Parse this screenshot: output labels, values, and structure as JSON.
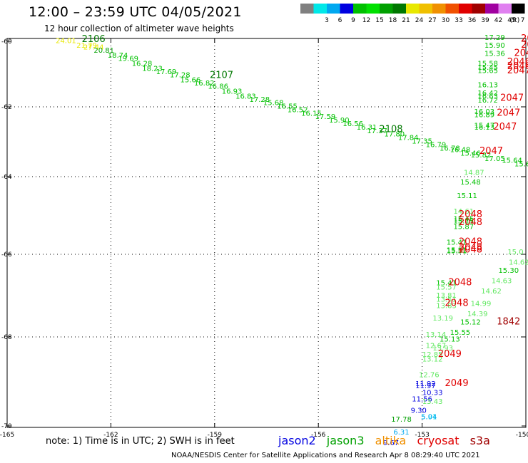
{
  "header": {
    "title": "12:00 – 23:59 UTC 04/05/2021",
    "subtitle": "12 hour collection of altimeter wave heights"
  },
  "scale": {
    "units_label": "(ft)",
    "bins": [
      {
        "label": "",
        "color": "#808080"
      },
      {
        "label": "3",
        "color": "#00e8e8"
      },
      {
        "label": "6",
        "color": "#00a8f0"
      },
      {
        "label": "9",
        "color": "#0000e0"
      },
      {
        "label": "12",
        "color": "#00c000"
      },
      {
        "label": "15",
        "color": "#00e000"
      },
      {
        "label": "18",
        "color": "#00a000"
      },
      {
        "label": "21",
        "color": "#007800"
      },
      {
        "label": "24",
        "color": "#e8e800"
      },
      {
        "label": "27",
        "color": "#f0c000"
      },
      {
        "label": "30",
        "color": "#f09000"
      },
      {
        "label": "33",
        "color": "#f05000"
      },
      {
        "label": "36",
        "color": "#e00000"
      },
      {
        "label": "39",
        "color": "#a00000"
      },
      {
        "label": "42",
        "color": "#a000a0"
      },
      {
        "label": "45",
        "color": "#e080f0"
      },
      {
        "label": "70",
        "color": "#000000"
      }
    ]
  },
  "axes": {
    "x_ticks": [
      "-165",
      "-162",
      "-159",
      "-156",
      "-153",
      "-150"
    ],
    "y_ticks": [
      "-60",
      "-62",
      "-64",
      "-66",
      "-68",
      "-70"
    ]
  },
  "chart_data": {
    "type": "map",
    "grid": "dotted",
    "tracks": [
      {
        "satellite": "jason3",
        "points": [
          {
            "lon": -163.3,
            "lat": -60.05,
            "swh": "24.01",
            "color": "#e8e800"
          },
          {
            "lon": -162.7,
            "lat": -60.2,
            "swh": "21.79",
            "color": "#e8e800"
          },
          {
            "lon": -162.5,
            "lat": -60.25,
            "swh": "27.44",
            "color": "#e8e800"
          },
          {
            "lon": -162.2,
            "lat": -60.35,
            "swh": "20.81",
            "color": "#00a000"
          },
          {
            "lon": -161.8,
            "lat": -60.5,
            "swh": "18.74",
            "color": "#00c000"
          },
          {
            "lon": -161.5,
            "lat": -60.6,
            "swh": "19.69",
            "color": "#00c000"
          },
          {
            "lon": -161.1,
            "lat": -60.75,
            "swh": "16.28",
            "color": "#00c000"
          },
          {
            "lon": -160.8,
            "lat": -60.9,
            "swh": "18.23",
            "color": "#00c000"
          },
          {
            "lon": -160.4,
            "lat": -61.0,
            "swh": "17.69",
            "color": "#00c000"
          },
          {
            "lon": -160.0,
            "lat": -61.1,
            "swh": "17.28",
            "color": "#00c000"
          },
          {
            "lon": -159.7,
            "lat": -61.25,
            "swh": "15.66",
            "color": "#00c000"
          },
          {
            "lon": -159.3,
            "lat": -61.35,
            "swh": "16.82",
            "color": "#00c000"
          },
          {
            "lon": -158.9,
            "lat": -61.45,
            "swh": "16.86",
            "color": "#00c000"
          },
          {
            "lon": -158.5,
            "lat": -61.6,
            "swh": "16.93",
            "color": "#00c000"
          },
          {
            "lon": -158.1,
            "lat": -61.75,
            "swh": "16.83",
            "color": "#00c000"
          },
          {
            "lon": -157.7,
            "lat": -61.85,
            "swh": "17.28",
            "color": "#00c000"
          },
          {
            "lon": -157.3,
            "lat": -61.95,
            "swh": "15.68",
            "color": "#00c000"
          },
          {
            "lon": -156.9,
            "lat": -62.05,
            "swh": "16.55",
            "color": "#00c000"
          },
          {
            "lon": -156.6,
            "lat": -62.15,
            "swh": "16.52",
            "color": "#00c000"
          },
          {
            "lon": -156.2,
            "lat": -62.25,
            "swh": "16.15",
            "color": "#00c000"
          },
          {
            "lon": -155.8,
            "lat": -62.35,
            "swh": "17.59",
            "color": "#00c000"
          },
          {
            "lon": -155.4,
            "lat": -62.45,
            "swh": "15.90",
            "color": "#00c000"
          },
          {
            "lon": -155.0,
            "lat": -62.55,
            "swh": "16.56",
            "color": "#00c000"
          },
          {
            "lon": -154.6,
            "lat": -62.65,
            "swh": "16.31",
            "color": "#00c000"
          },
          {
            "lon": -154.3,
            "lat": -62.75,
            "swh": "17.37",
            "color": "#00c000"
          },
          {
            "lon": -153.8,
            "lat": -62.85,
            "swh": "17.80",
            "color": "#00c000"
          },
          {
            "lon": -153.4,
            "lat": -62.95,
            "swh": "17.84",
            "color": "#00c000"
          },
          {
            "lon": -153.0,
            "lat": -63.05,
            "swh": "17.35",
            "color": "#00c000"
          },
          {
            "lon": -152.6,
            "lat": -63.15,
            "swh": "16.79",
            "color": "#00c000"
          },
          {
            "lon": -152.2,
            "lat": -63.25,
            "swh": "16.78",
            "color": "#00c000"
          },
          {
            "lon": -151.9,
            "lat": -63.3,
            "swh": "16.48",
            "color": "#00c000"
          },
          {
            "lon": -151.6,
            "lat": -63.4,
            "swh": "15.46",
            "color": "#00c000"
          },
          {
            "lon": -151.3,
            "lat": -63.45,
            "swh": "15.82",
            "color": "#00c000"
          },
          {
            "lon": -150.9,
            "lat": -63.55,
            "swh": "17.05",
            "color": "#00c000"
          },
          {
            "lon": -150.4,
            "lat": -63.6,
            "swh": "15.64",
            "color": "#00c000"
          },
          {
            "lon": -150.1,
            "lat": -63.7,
            "swh": "15.6",
            "color": "#00c000"
          }
        ]
      },
      {
        "satellite": "jason3",
        "points": [
          {
            "lon": -150.9,
            "lat": -59.95,
            "swh": "17.29",
            "color": "#00c000"
          },
          {
            "lon": -150.9,
            "lat": -60.2,
            "swh": "15.90",
            "color": "#00c000"
          },
          {
            "lon": -150.9,
            "lat": -60.45,
            "swh": "15.36",
            "color": "#00c000"
          },
          {
            "lon": -151.1,
            "lat": -60.75,
            "swh": "15.58",
            "color": "#00c000"
          },
          {
            "lon": -151.1,
            "lat": -60.87,
            "swh": "15.45",
            "color": "#00c000"
          },
          {
            "lon": -151.1,
            "lat": -60.97,
            "swh": "15.65",
            "color": "#00c000"
          },
          {
            "lon": -151.1,
            "lat": -61.4,
            "swh": "16.13",
            "color": "#00c000"
          },
          {
            "lon": -151.1,
            "lat": -61.65,
            "swh": "16.42",
            "color": "#00c000"
          },
          {
            "lon": -151.1,
            "lat": -61.75,
            "swh": "16.63",
            "color": "#00c000"
          },
          {
            "lon": -151.1,
            "lat": -61.87,
            "swh": "16.72",
            "color": "#00c000"
          },
          {
            "lon": -151.2,
            "lat": -62.2,
            "swh": "16.03",
            "color": "#00c000"
          },
          {
            "lon": -151.2,
            "lat": -62.3,
            "swh": "16.89",
            "color": "#00c000"
          },
          {
            "lon": -151.2,
            "lat": -62.6,
            "swh": "15.47",
            "color": "#00c000"
          },
          {
            "lon": -151.2,
            "lat": -62.65,
            "swh": "16.13",
            "color": "#00c000"
          }
        ]
      },
      {
        "satellite": "jason3",
        "points": [
          {
            "lon": -151.5,
            "lat": -63.95,
            "swh": "14.87",
            "color": "#60e860"
          },
          {
            "lon": -151.6,
            "lat": -64.2,
            "swh": "15.48",
            "color": "#00c000"
          },
          {
            "lon": -151.7,
            "lat": -64.55,
            "swh": "15.11",
            "color": "#00c000"
          },
          {
            "lon": -151.8,
            "lat": -64.95,
            "swh": "14.61",
            "color": "#60e860"
          },
          {
            "lon": -151.8,
            "lat": -65.15,
            "swh": "15.45",
            "color": "#00c000"
          },
          {
            "lon": -151.8,
            "lat": -65.2,
            "swh": "15.15",
            "color": "#00c000"
          },
          {
            "lon": -151.8,
            "lat": -65.35,
            "swh": "15.87",
            "color": "#00c000"
          },
          {
            "lon": -152.0,
            "lat": -65.75,
            "swh": "15.41",
            "color": "#00c000"
          },
          {
            "lon": -152.0,
            "lat": -65.95,
            "swh": "15.31",
            "color": "#00c000"
          },
          {
            "lon": -152.0,
            "lat": -65.97,
            "swh": "15.51",
            "color": "#00c000"
          },
          {
            "lon": -152.3,
            "lat": -66.75,
            "swh": "15.41",
            "color": "#00c000"
          },
          {
            "lon": -152.3,
            "lat": -66.85,
            "swh": "15.57",
            "color": "#60e860"
          },
          {
            "lon": -152.3,
            "lat": -67.05,
            "swh": "13.81",
            "color": "#60e860"
          },
          {
            "lon": -152.3,
            "lat": -67.15,
            "swh": "13.51",
            "color": "#60e860"
          },
          {
            "lon": -152.3,
            "lat": -67.3,
            "swh": "13.83",
            "color": "#60e860"
          },
          {
            "lon": -152.4,
            "lat": -67.6,
            "swh": "13.19",
            "color": "#60e860"
          },
          {
            "lon": -152.6,
            "lat": -68.0,
            "swh": "13.14",
            "color": "#60e860"
          },
          {
            "lon": -152.6,
            "lat": -68.25,
            "swh": "12.67",
            "color": "#60e860"
          },
          {
            "lon": -152.7,
            "lat": -68.45,
            "swh": "12.85",
            "color": "#60e860"
          },
          {
            "lon": -152.7,
            "lat": -68.55,
            "swh": "13.12",
            "color": "#60e860"
          },
          {
            "lon": -152.8,
            "lat": -68.9,
            "swh": "12.76",
            "color": "#60e860"
          },
          {
            "lon": -153.0,
            "lat": -69.45,
            "swh": "11.56",
            "color": "#0000e0"
          },
          {
            "lon": -153.1,
            "lat": -69.7,
            "swh": "9.30",
            "color": "#0000e0"
          },
          {
            "lon": -153.6,
            "lat": -69.9,
            "swh": "17.78",
            "color": "#00a000"
          },
          {
            "lon": -153.6,
            "lat": -70.2,
            "swh": "6.31",
            "color": "#00a8f0"
          },
          {
            "lon": -153.9,
            "lat": -70.45,
            "swh": "9.67",
            "color": "#0000e0"
          }
        ]
      },
      {
        "satellite": "jason3",
        "points": [
          {
            "lon": -150.3,
            "lat": -66.0,
            "swh": "15.0",
            "color": "#60e860"
          },
          {
            "lon": -150.2,
            "lat": -66.25,
            "swh": "14.62",
            "color": "#60e860"
          },
          {
            "lon": -150.5,
            "lat": -66.45,
            "swh": "15.30",
            "color": "#00c000"
          },
          {
            "lon": -150.7,
            "lat": -66.7,
            "swh": "14.63",
            "color": "#60e860"
          },
          {
            "lon": -151.0,
            "lat": -66.95,
            "swh": "14.62",
            "color": "#60e860"
          },
          {
            "lon": -151.3,
            "lat": -67.25,
            "swh": "14.99",
            "color": "#60e860"
          },
          {
            "lon": -151.4,
            "lat": -67.5,
            "swh": "14.39",
            "color": "#60e860"
          },
          {
            "lon": -151.6,
            "lat": -67.7,
            "swh": "15.12",
            "color": "#00c000"
          },
          {
            "lon": -151.9,
            "lat": -67.95,
            "swh": "15.55",
            "color": "#00c000"
          },
          {
            "lon": -152.2,
            "lat": -68.1,
            "swh": "15.13",
            "color": "#00c000"
          },
          {
            "lon": -152.4,
            "lat": -68.3,
            "swh": "13.93",
            "color": "#60e860"
          },
          {
            "lon": -152.7,
            "lat": -69.5,
            "swh": "13.43",
            "color": "#60e860"
          },
          {
            "lon": -152.8,
            "lat": -69.85,
            "swh": "5.91",
            "color": "#00e8e8"
          }
        ]
      },
      {
        "satellite": "jason2",
        "points": [
          {
            "lon": -152.9,
            "lat": -69.1,
            "swh": "11.92",
            "color": "#0000e0"
          },
          {
            "lon": -152.9,
            "lat": -69.15,
            "swh": "11.97",
            "color": "#0000e0"
          },
          {
            "lon": -152.7,
            "lat": -69.3,
            "swh": "10.33",
            "color": "#0000e0"
          },
          {
            "lon": -152.8,
            "lat": -69.85,
            "swh": "5.04",
            "color": "#00a8f0"
          }
        ]
      }
    ],
    "pass_labels": [
      {
        "text": "2106",
        "lon": -162.5,
        "lat": -60.02,
        "color": "#007800"
      },
      {
        "text": "2107",
        "lon": -158.8,
        "lat": -61.12,
        "color": "#007800"
      },
      {
        "text": "2108",
        "lon": -153.9,
        "lat": -62.72,
        "color": "#007800"
      },
      {
        "text": "2046",
        "lon": -149.8,
        "lat": -60.0,
        "color": "#e00000"
      },
      {
        "text": "2046",
        "lon": -149.8,
        "lat": -60.2,
        "color": "#e00000"
      },
      {
        "text": "2046",
        "lon": -150.0,
        "lat": -60.45,
        "color": "#e00000"
      },
      {
        "text": "2046",
        "lon": -150.2,
        "lat": -60.72,
        "color": "#e00000"
      },
      {
        "text": "2046",
        "lon": -150.2,
        "lat": -60.85,
        "color": "#e00000"
      },
      {
        "text": "2047",
        "lon": -150.2,
        "lat": -60.98,
        "color": "#e00000"
      },
      {
        "text": "2047",
        "lon": -150.4,
        "lat": -61.82,
        "color": "#e00000"
      },
      {
        "text": "2047",
        "lon": -150.5,
        "lat": -62.25,
        "color": "#e00000"
      },
      {
        "text": "2047",
        "lon": -150.6,
        "lat": -62.65,
        "color": "#e00000"
      },
      {
        "text": "2047",
        "lon": -151.0,
        "lat": -63.35,
        "color": "#e00000"
      },
      {
        "text": "2048",
        "lon": -151.6,
        "lat": -65.05,
        "color": "#e00000"
      },
      {
        "text": "2048",
        "lon": -151.6,
        "lat": -65.25,
        "color": "#e00000"
      },
      {
        "text": "2048",
        "lon": -151.6,
        "lat": -65.75,
        "color": "#e00000"
      },
      {
        "text": "2048",
        "lon": -151.6,
        "lat": -65.9,
        "color": "#e00000"
      },
      {
        "text": "2048",
        "lon": -151.6,
        "lat": -65.95,
        "color": "#e00000"
      },
      {
        "text": "2048",
        "lon": -151.9,
        "lat": -66.75,
        "color": "#e00000"
      },
      {
        "text": "2048",
        "lon": -152.0,
        "lat": -67.25,
        "color": "#e00000"
      },
      {
        "text": "1842",
        "lon": -150.5,
        "lat": -67.7,
        "color": "#a00000"
      },
      {
        "text": "2049",
        "lon": -152.2,
        "lat": -68.45,
        "color": "#e00000"
      },
      {
        "text": "2049",
        "lon": -152.0,
        "lat": -69.1,
        "color": "#e00000"
      }
    ]
  },
  "footer": {
    "note": "note: 1) Time is in UTC; 2) SWH is in feet",
    "satellites": [
      {
        "name": "jason2",
        "color": "#0000e0"
      },
      {
        "name": "jason3",
        "color": "#00a000"
      },
      {
        "name": "altika",
        "color": "#f09000"
      },
      {
        "name": "cryosat",
        "color": "#e00000"
      },
      {
        "name": "s3a",
        "color": "#a00000"
      }
    ],
    "credit": "NOAA/NESDIS Center for Satellite Applications and Research   Apr  8 08:29:40 UTC 2021"
  }
}
